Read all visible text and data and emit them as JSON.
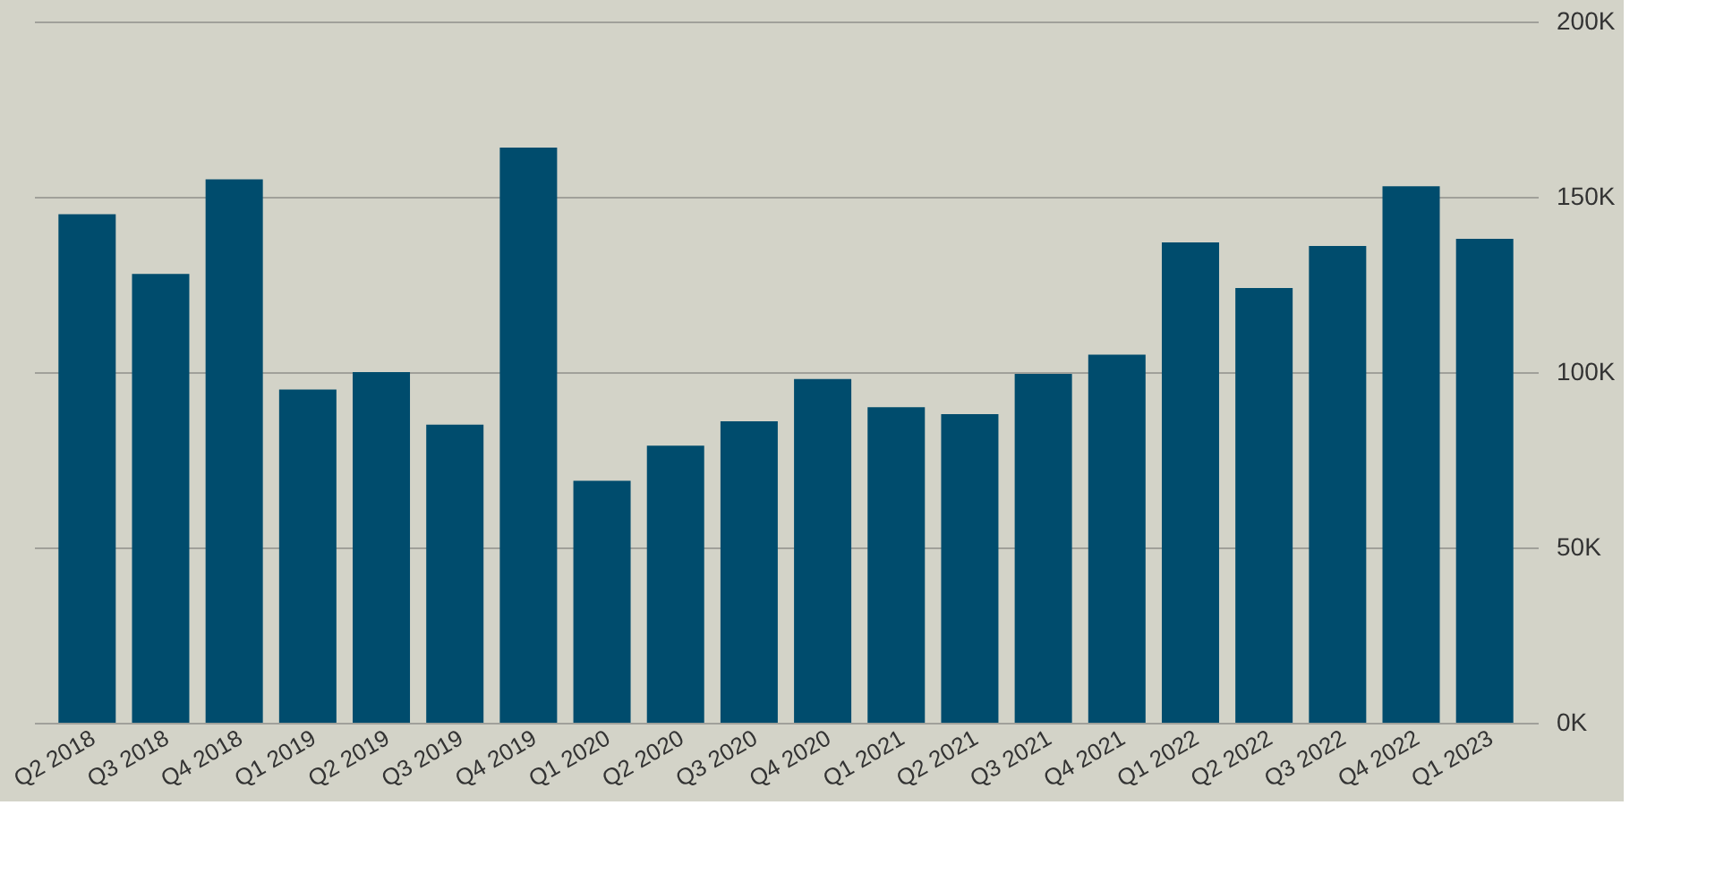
{
  "chart_data": {
    "type": "bar",
    "categories": [
      "Q2 2018",
      "Q3 2018",
      "Q4 2018",
      "Q1 2019",
      "Q2 2019",
      "Q3 2019",
      "Q4 2019",
      "Q1 2020",
      "Q2 2020",
      "Q3 2020",
      "Q4 2020",
      "Q1 2021",
      "Q2 2021",
      "Q3 2021",
      "Q4 2021",
      "Q1 2022",
      "Q2 2022",
      "Q3 2022",
      "Q4 2022",
      "Q1 2023"
    ],
    "values": [
      145000,
      128000,
      155000,
      95000,
      100000,
      85000,
      164000,
      69000,
      79000,
      86000,
      98000,
      90000,
      88000,
      99500,
      105000,
      137000,
      124000,
      136000,
      153000,
      138000
    ],
    "color": "#004c6d",
    "ylim": [
      0,
      200000
    ],
    "yticks": [
      {
        "value": 0,
        "label": "0K"
      },
      {
        "value": 50000,
        "label": "50K"
      },
      {
        "value": 100000,
        "label": "100K"
      },
      {
        "value": 150000,
        "label": "150K"
      },
      {
        "value": 200000,
        "label": "200K"
      }
    ],
    "grid": "y"
  }
}
